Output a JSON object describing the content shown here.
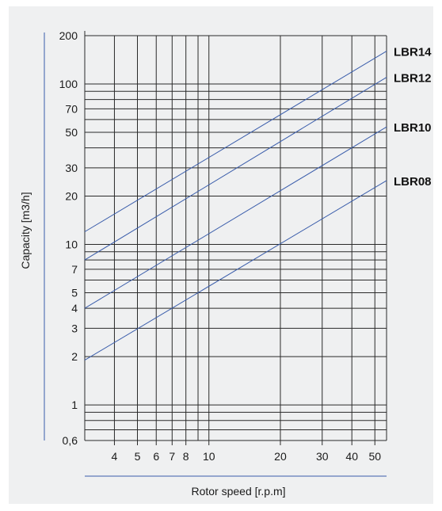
{
  "colors": {
    "background": "#eff0f1",
    "grid": "#2a2a2a",
    "series_line": "#3a5dab",
    "axis_accent": "#3a5dab"
  },
  "chart_data": {
    "type": "line",
    "title": "",
    "xlabel": "Rotor speed [r.p.m]",
    "ylabel": "Capacity [m3/h]",
    "x_scale": "log",
    "y_scale": "log",
    "xlim": [
      3,
      56
    ],
    "ylim": [
      0.6,
      200
    ],
    "grid": true,
    "legend": "right-edge labels",
    "x_ticks": [
      4,
      5,
      6,
      7,
      8,
      10,
      20,
      30,
      40,
      50
    ],
    "x_tick_labels": [
      "4",
      "5",
      "6",
      "7",
      "8",
      "10",
      "20",
      "30",
      "40",
      "50"
    ],
    "x_grid": [
      3,
      4,
      5,
      6,
      7,
      8,
      9,
      10,
      20,
      30,
      40,
      50,
      56
    ],
    "y_ticks": [
      0.6,
      1,
      2,
      3,
      4,
      5,
      7,
      10,
      20,
      30,
      50,
      70,
      100,
      200
    ],
    "y_tick_labels": [
      "0,6",
      "1",
      "2",
      "3",
      "4",
      "5",
      "7",
      "10",
      "20",
      "30",
      "50",
      "70",
      "100",
      "200"
    ],
    "y_grid": [
      0.6,
      0.7,
      0.8,
      0.9,
      1,
      2,
      3,
      4,
      5,
      6,
      7,
      8,
      9,
      10,
      20,
      30,
      40,
      50,
      60,
      70,
      80,
      90,
      100,
      200
    ],
    "series": [
      {
        "name": "LBR14",
        "x": [
          3,
          56
        ],
        "y": [
          12,
          160
        ]
      },
      {
        "name": "LBR12",
        "x": [
          3,
          56
        ],
        "y": [
          8,
          110
        ]
      },
      {
        "name": "LBR10",
        "x": [
          3,
          56
        ],
        "y": [
          4,
          54
        ]
      },
      {
        "name": "LBR08",
        "x": [
          3,
          56
        ],
        "y": [
          1.9,
          25
        ]
      }
    ]
  }
}
